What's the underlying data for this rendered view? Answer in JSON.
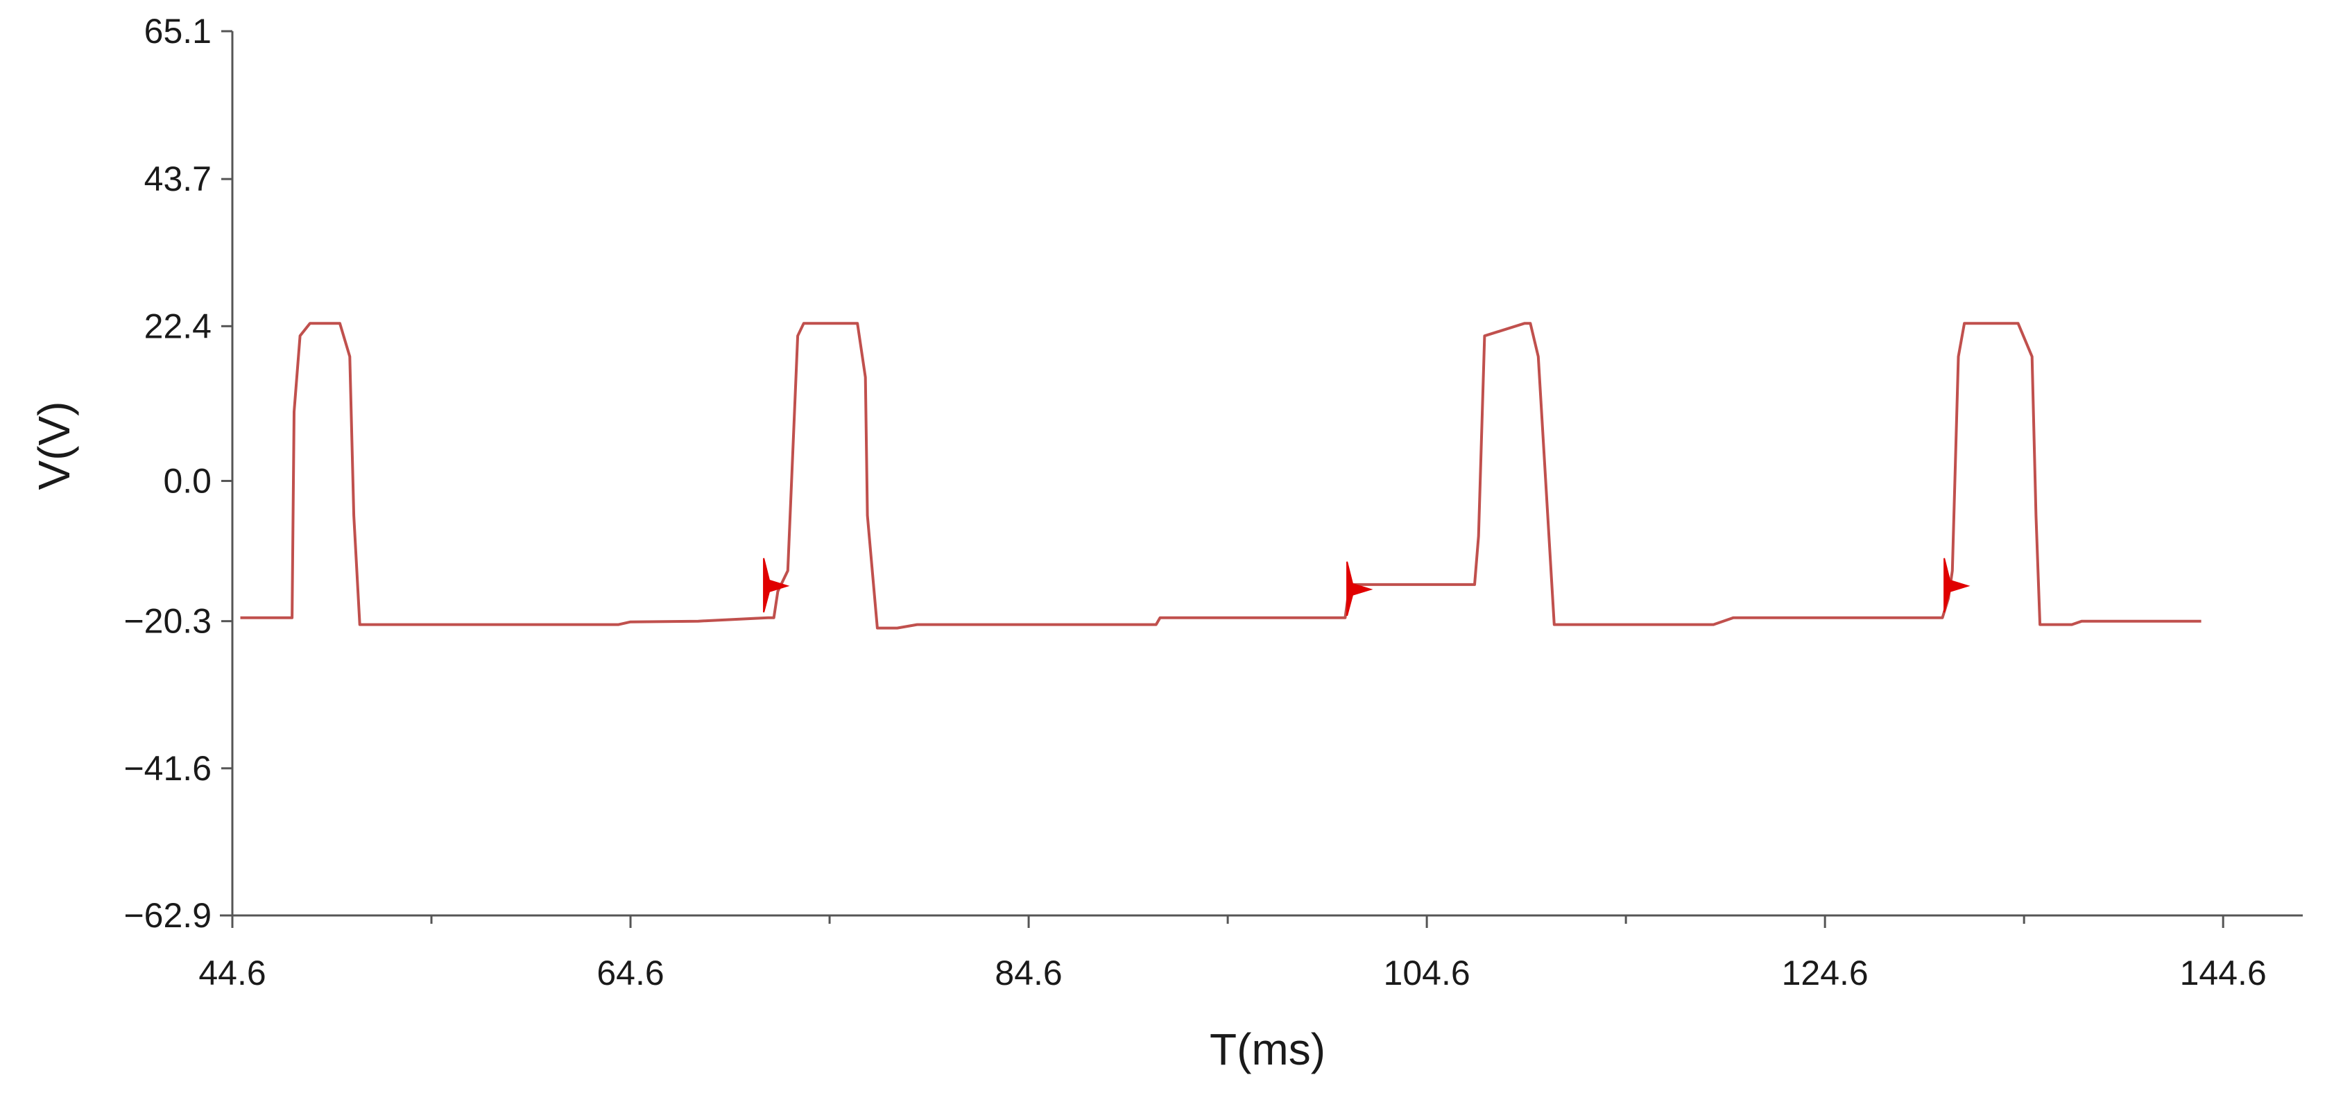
{
  "chart_data": {
    "type": "line",
    "title": "",
    "xlabel": "T(ms)",
    "ylabel": "V(V)",
    "xlim": [
      44.6,
      148.6
    ],
    "ylim": [
      -62.9,
      65.1
    ],
    "x_ticks": [
      44.6,
      64.6,
      84.6,
      104.6,
      124.6,
      144.6
    ],
    "x_tick_labels": [
      "44.6",
      "64.6",
      "84.6",
      "104.6",
      "124.6",
      "144.6"
    ],
    "x_minor_ticks": [
      54.6,
      74.6,
      94.6,
      114.6,
      134.6
    ],
    "y_ticks": [
      65.1,
      43.7,
      22.4,
      0.0,
      -20.3,
      -41.6,
      -62.9
    ],
    "y_tick_labels": [
      "65.1",
      "43.7",
      "22.4",
      "0.0",
      "−20.3",
      "−41.6",
      "−62.9"
    ],
    "grid": false,
    "legend": "none",
    "line_color": "#c0504d",
    "spike_color": "#e00000",
    "series": [
      {
        "x": [
          45.0,
          47.6,
          47.7,
          48.0,
          48.5,
          50.0,
          50.5,
          50.7,
          51.0,
          52.0,
          60.0,
          64.0,
          64.6,
          68.0,
          71.5,
          71.8,
          72.0,
          72.5,
          73.0,
          73.3,
          76.0,
          76.4,
          76.5,
          77.0,
          78.0,
          79.0,
          86.0,
          91.0,
          91.2,
          100.5,
          100.7,
          100.9,
          101.2,
          104.4,
          107.0,
          107.2,
          107.5,
          109.5,
          109.8,
          110.2,
          111.0,
          115.0,
          119.0,
          120.0,
          130.5,
          130.8,
          131.0,
          131.3,
          131.6,
          134.3,
          135.0,
          135.2,
          135.4,
          137.0,
          137.5,
          141.0,
          141.4,
          143.5
        ],
        "y": [
          -19.8,
          -19.8,
          10.0,
          21.0,
          22.8,
          22.8,
          18.0,
          -5.0,
          -20.8,
          -20.8,
          -20.8,
          -20.8,
          -20.4,
          -20.3,
          -19.8,
          -19.8,
          -16.0,
          -13.0,
          21.0,
          22.8,
          22.8,
          15.0,
          -5.0,
          -21.3,
          -21.3,
          -20.8,
          -20.8,
          -20.8,
          -19.8,
          -19.8,
          -15.5,
          -15.0,
          -15.0,
          -15.0,
          -15.0,
          -8.0,
          21.0,
          22.8,
          22.8,
          18.0,
          -20.8,
          -20.8,
          -20.8,
          -19.8,
          -19.8,
          -17.0,
          -13.0,
          18.0,
          22.8,
          22.8,
          18.0,
          -5.0,
          -20.8,
          -20.8,
          -20.3,
          -20.3,
          -20.3,
          -20.3
        ]
      }
    ],
    "spikes": [
      {
        "x": 71.5,
        "y": -15.0
      },
      {
        "x": 100.8,
        "y": -15.5
      },
      {
        "x": 130.8,
        "y": -15.0
      }
    ]
  }
}
